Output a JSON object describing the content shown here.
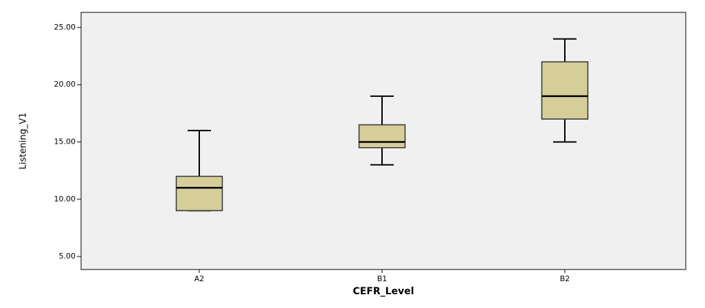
{
  "chart_data": {
    "type": "box",
    "x_label": "CEFR_Level",
    "y_label": "Listening_V1",
    "categories": [
      "A2",
      "B1",
      "B2"
    ],
    "min": [
      9,
      13,
      15
    ],
    "q1": [
      9,
      14.5,
      17
    ],
    "median": [
      11,
      15,
      19
    ],
    "q3": [
      12,
      16.5,
      22
    ],
    "max": [
      16,
      19,
      24
    ],
    "color": "#d5ce99",
    "ylim": [
      3.86,
      26.32
    ],
    "yticks": [
      {
        "value": 5,
        "label": "5.00"
      },
      {
        "value": 10,
        "label": "10.00"
      },
      {
        "value": 15,
        "label": "15.00"
      },
      {
        "value": 20,
        "label": "20.00"
      },
      {
        "value": 25,
        "label": "25.00"
      }
    ]
  }
}
